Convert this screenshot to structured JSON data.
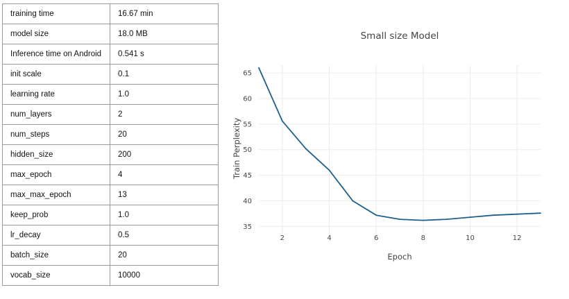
{
  "table": {
    "rows": [
      {
        "key": "training time",
        "value": "16.67 min"
      },
      {
        "key": "model size",
        "value": "18.0 MB"
      },
      {
        "key": "Inference time on Android",
        "value": "0.541 s"
      },
      {
        "key": "init scale",
        "value": "0.1"
      },
      {
        "key": "learning rate",
        "value": "1.0"
      },
      {
        "key": "num_layers",
        "value": "2"
      },
      {
        "key": "num_steps",
        "value": "20"
      },
      {
        "key": "hidden_size",
        "value": "200"
      },
      {
        "key": "max_epoch",
        "value": "4"
      },
      {
        "key": "max_max_epoch",
        "value": "13"
      },
      {
        "key": "keep_prob",
        "value": "1.0"
      },
      {
        "key": "lr_decay",
        "value": "0.5"
      },
      {
        "key": "batch_size",
        "value": "20"
      },
      {
        "key": "vocab_size",
        "value": "10000"
      }
    ]
  },
  "chart_data": {
    "type": "line",
    "title": "Small size Model",
    "xlabel": "Epoch",
    "ylabel": "Train Perplexity",
    "x": [
      1,
      2,
      3,
      4,
      5,
      6,
      7,
      8,
      9,
      10,
      11,
      12,
      13
    ],
    "series": [
      {
        "values": [
          66.0,
          55.6,
          50.2,
          46.0,
          40.0,
          37.2,
          36.4,
          36.2,
          36.4,
          36.8,
          37.2,
          37.4,
          37.6
        ]
      }
    ],
    "xlim": [
      1,
      13
    ],
    "ylim": [
      33.7,
      66.5
    ],
    "xticks": [
      2,
      4,
      6,
      8,
      10,
      12
    ],
    "yticks": [
      35,
      40,
      45,
      50,
      55,
      60,
      65
    ],
    "grid": true,
    "line_color": "#1f5f8b"
  }
}
